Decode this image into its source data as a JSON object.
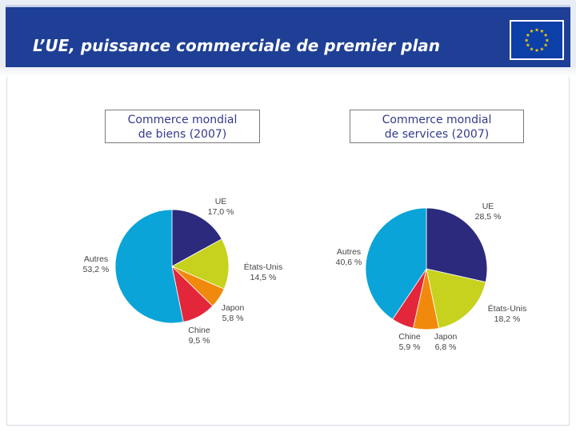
{
  "header": {
    "title": "L’UE, puissance commerciale de premier plan",
    "flag_icon": "eu-flag-icon"
  },
  "colors": {
    "title_bar": "#1e3f95",
    "box_title_text": "#333a8a",
    "UE": "#2b2a7c",
    "Etats-Unis": "#c6d21d",
    "Japon": "#f18a0c",
    "Chine": "#e3263a",
    "Autres": "#0aa4d8"
  },
  "chart_data": [
    {
      "type": "pie",
      "title_lines": [
        "Commerce mondial",
        "de biens (2007)"
      ],
      "slices": [
        {
          "name": "UE",
          "value": 17.0,
          "display": "17,0 %"
        },
        {
          "name": "États-Unis",
          "value": 14.5,
          "display": "14,5 %"
        },
        {
          "name": "Japon",
          "value": 5.8,
          "display": "5,8 %"
        },
        {
          "name": "Chine",
          "value": 9.5,
          "display": "9,5 %"
        },
        {
          "name": "Autres",
          "value": 53.2,
          "display": "53,2 %"
        }
      ]
    },
    {
      "type": "pie",
      "title_lines": [
        "Commerce mondial",
        "de services (2007)"
      ],
      "slices": [
        {
          "name": "UE",
          "value": 28.5,
          "display": "28,5 %"
        },
        {
          "name": "États-Unis",
          "value": 18.2,
          "display": "18,2 %"
        },
        {
          "name": "Japon",
          "value": 6.8,
          "display": "6,8 %"
        },
        {
          "name": "Chine",
          "value": 5.9,
          "display": "5,9 %"
        },
        {
          "name": "Autres",
          "value": 40.6,
          "display": "40,6 %"
        }
      ]
    }
  ]
}
